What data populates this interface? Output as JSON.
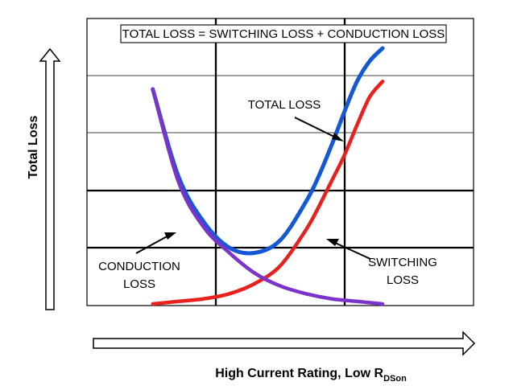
{
  "chart_data": {
    "type": "line",
    "title": "TOTAL LOSS = SWITCHING LOSS + CONDUCTION LOSS",
    "xlabel": "High Current Rating, Low R",
    "xlabel_subscript": "DSon",
    "ylabel": "Total Loss",
    "xlim": [
      0,
      1
    ],
    "ylim": [
      0,
      1
    ],
    "grid": true,
    "series": [
      {
        "name": "TOTAL LOSS",
        "label_lines": [
          "TOTAL LOSS"
        ],
        "color": "#1458d6",
        "x": [
          0.1,
          0.2,
          0.3,
          0.4,
          0.5,
          0.6,
          0.7,
          0.75,
          0.8,
          0.85,
          0.9,
          0.95,
          1.0
        ],
        "y": [
          0.84,
          0.5,
          0.32,
          0.22,
          0.2,
          0.25,
          0.4,
          0.5,
          0.62,
          0.75,
          0.87,
          0.95,
          1.0
        ]
      },
      {
        "name": "SWITCHING LOSS",
        "label_lines": [
          "SWITCHING",
          "LOSS"
        ],
        "color": "#e8211f",
        "x": [
          0.1,
          0.2,
          0.3,
          0.4,
          0.5,
          0.6,
          0.7,
          0.75,
          0.8,
          0.85,
          0.9,
          0.95,
          1.0
        ],
        "y": [
          0.0,
          0.01,
          0.02,
          0.04,
          0.08,
          0.15,
          0.29,
          0.38,
          0.48,
          0.58,
          0.7,
          0.81,
          0.87
        ]
      },
      {
        "name": "CONDUCTION LOSS",
        "label_lines": [
          "CONDUCTION",
          "LOSS"
        ],
        "color": "#7b33c9",
        "x": [
          0.1,
          0.2,
          0.3,
          0.4,
          0.5,
          0.6,
          0.7,
          0.8,
          0.9,
          1.0
        ],
        "y": [
          0.84,
          0.48,
          0.3,
          0.2,
          0.12,
          0.07,
          0.04,
          0.02,
          0.01,
          0.0
        ]
      }
    ],
    "annotations": [
      {
        "text": "TOTAL LOSS",
        "target_series": "TOTAL LOSS"
      },
      {
        "text": "SWITCHING LOSS",
        "target_series": "SWITCHING LOSS"
      },
      {
        "text": "CONDUCTION LOSS",
        "target_series": "CONDUCTION LOSS"
      }
    ]
  }
}
